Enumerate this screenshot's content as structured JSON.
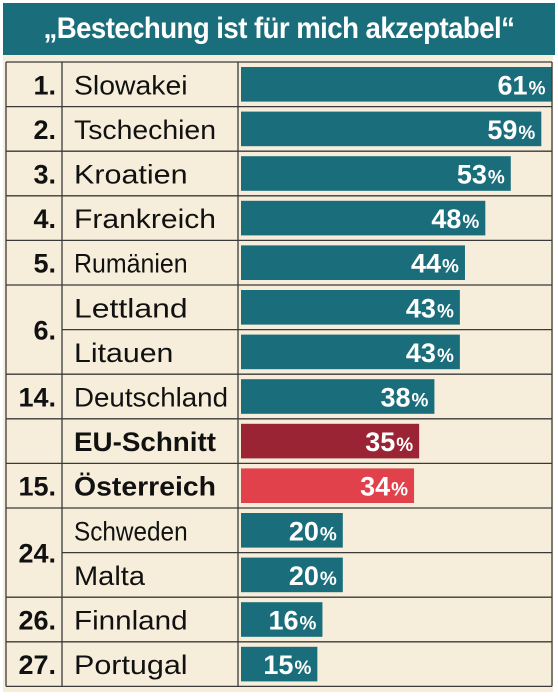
{
  "chart_data": {
    "type": "bar",
    "title": "„Bestechung ist für mich akzeptabel“",
    "unit": "%",
    "rows": [
      {
        "rank": "1.",
        "country": "Slowakei",
        "value": 61,
        "kind": "normal"
      },
      {
        "rank": "2.",
        "country": "Tschechien",
        "value": 59,
        "kind": "normal"
      },
      {
        "rank": "3.",
        "country": "Kroatien",
        "value": 53,
        "kind": "normal"
      },
      {
        "rank": "4.",
        "country": "Frankreich",
        "value": 48,
        "kind": "normal"
      },
      {
        "rank": "5.",
        "country": "Rumänien",
        "value": 44,
        "kind": "normal"
      },
      {
        "rank": "6.",
        "country": "Lettland",
        "value": 43,
        "kind": "normal"
      },
      {
        "rank": "",
        "country": "Litauen",
        "value": 43,
        "kind": "normal"
      },
      {
        "rank": "14.",
        "country": "Deutschland",
        "value": 38,
        "kind": "normal"
      },
      {
        "rank": "",
        "country": "EU-Schnitt",
        "value": 35,
        "kind": "eu"
      },
      {
        "rank": "15.",
        "country": "Österreich",
        "value": 34,
        "kind": "austria"
      },
      {
        "rank": "24.",
        "country": "Schweden",
        "value": 20,
        "kind": "normal"
      },
      {
        "rank": "",
        "country": "Malta",
        "value": 20,
        "kind": "normal"
      },
      {
        "rank": "26.",
        "country": "Finnland",
        "value": 16,
        "kind": "normal"
      },
      {
        "rank": "27.",
        "country": "Portugal",
        "value": 15,
        "kind": "normal"
      }
    ]
  },
  "colors": {
    "bar": "#1a6d7a",
    "eu": "#9b2434",
    "austria": "#e0414a",
    "background": "#f6eedb",
    "grid": "#3a3a3a",
    "title_bg": "#1a6d7a"
  }
}
